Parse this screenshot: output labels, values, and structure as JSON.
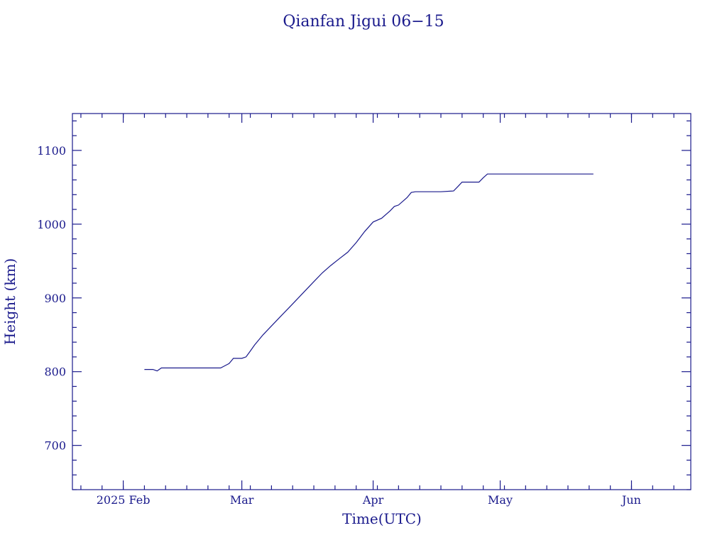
{
  "chart_data": {
    "type": "line",
    "title": "Qianfan Jigui 06−15",
    "xlabel": "Time(UTC)",
    "ylabel": "Height (km)",
    "x_unit": "date",
    "xlim": [
      "2025-01-20",
      "2025-06-15"
    ],
    "ylim": [
      640,
      1150
    ],
    "x_ticks": [
      {
        "date": "2025-02-01",
        "label": "2025 Feb"
      },
      {
        "date": "2025-03-01",
        "label": "Mar"
      },
      {
        "date": "2025-04-01",
        "label": "Apr"
      },
      {
        "date": "2025-05-01",
        "label": "May"
      },
      {
        "date": "2025-06-01",
        "label": "Jun"
      }
    ],
    "y_ticks": [
      700,
      800,
      900,
      1000,
      1100
    ],
    "line_color": "#1a1a8c",
    "series": [
      {
        "x": [
          "2025-02-06",
          "2025-02-08",
          "2025-02-09",
          "2025-02-10",
          "2025-02-12",
          "2025-02-16",
          "2025-02-20",
          "2025-02-24",
          "2025-02-25",
          "2025-02-26",
          "2025-02-27",
          "2025-02-28",
          "2025-03-01",
          "2025-03-02",
          "2025-03-03",
          "2025-03-04",
          "2025-03-06",
          "2025-03-08",
          "2025-03-10",
          "2025-03-12",
          "2025-03-14",
          "2025-03-16",
          "2025-03-18",
          "2025-03-20",
          "2025-03-22",
          "2025-03-24",
          "2025-03-26",
          "2025-03-28",
          "2025-03-30",
          "2025-04-01",
          "2025-04-03",
          "2025-04-05",
          "2025-04-06",
          "2025-04-07",
          "2025-04-09",
          "2025-04-10",
          "2025-04-11",
          "2025-04-12",
          "2025-04-13",
          "2025-04-17",
          "2025-04-20",
          "2025-04-21",
          "2025-04-22",
          "2025-04-23",
          "2025-04-25",
          "2025-04-26",
          "2025-04-27",
          "2025-04-28",
          "2025-04-30",
          "2025-05-10",
          "2025-05-20",
          "2025-05-23"
        ],
        "y": [
          803,
          803,
          801,
          805,
          805,
          805,
          805,
          805,
          808,
          811,
          818,
          818,
          818,
          820,
          828,
          836,
          850,
          862,
          874,
          886,
          898,
          910,
          922,
          934,
          944,
          953,
          962,
          975,
          990,
          1003,
          1008,
          1018,
          1024,
          1026,
          1036,
          1043,
          1044,
          1044,
          1044,
          1044,
          1045,
          1051,
          1057,
          1057,
          1057,
          1057,
          1063,
          1068,
          1068,
          1068,
          1068,
          1068
        ]
      }
    ]
  }
}
